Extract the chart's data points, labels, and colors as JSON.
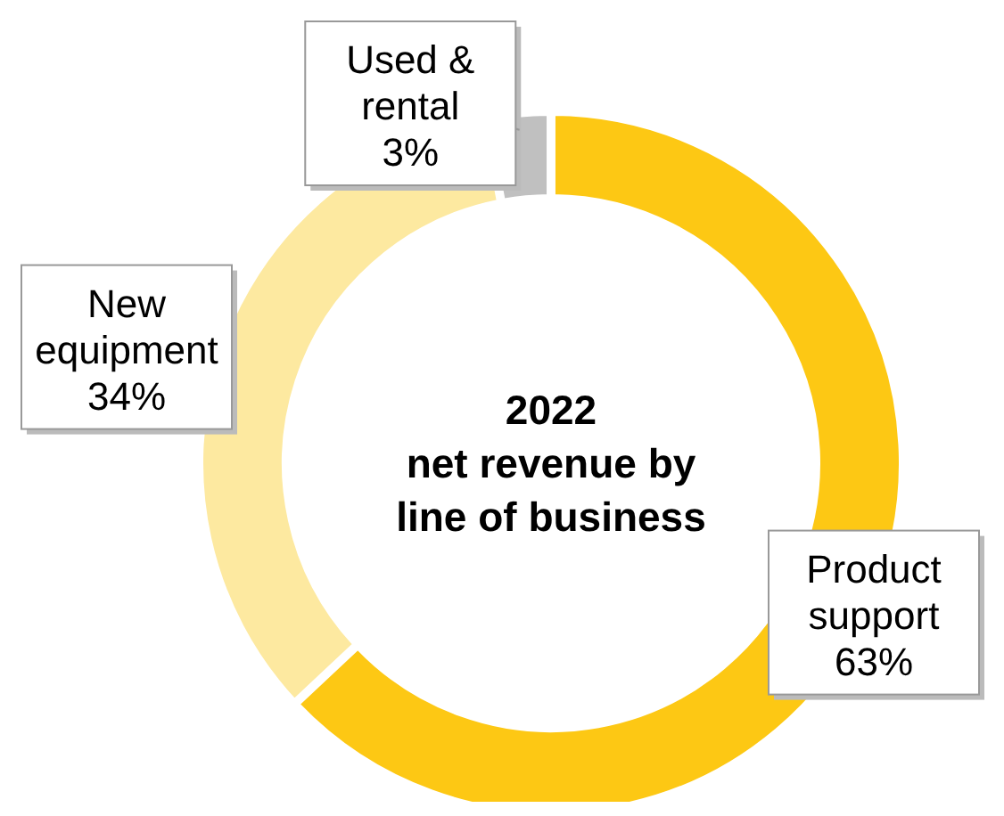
{
  "chart_data": {
    "type": "donut",
    "title": "2022\nnet revenue by\nline of business",
    "categories": [
      "Product support",
      "New equipment",
      "Used & rental"
    ],
    "values": [
      63,
      34,
      3
    ],
    "value_labels": [
      "63%",
      "34%",
      "3%"
    ],
    "colors": [
      "#fdc814",
      "#fde9a0",
      "#c0c0c0"
    ]
  }
}
